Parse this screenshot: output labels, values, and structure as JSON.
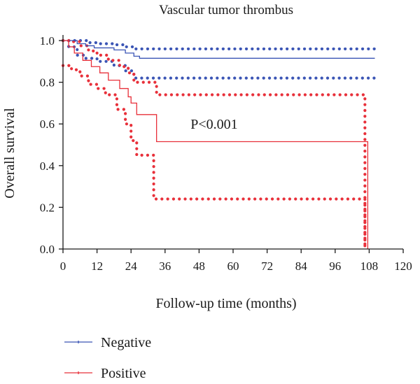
{
  "chart_data": {
    "type": "line",
    "subtype": "kaplan-meier survival with 95% confidence bands",
    "title": "Vascular tumor thrombus",
    "xlabel": "Follow-up time (months)",
    "ylabel": "Overall survival",
    "xlim": [
      0,
      120
    ],
    "ylim": [
      0,
      1.0
    ],
    "xticks": [
      0,
      12,
      24,
      36,
      48,
      60,
      72,
      84,
      96,
      108,
      120
    ],
    "yticks": [
      "0.0",
      "0.2",
      "0.4",
      "0.6",
      "0.8",
      "1.0"
    ],
    "grid": false,
    "annotation": "P<0.001",
    "legend_position": "bottom-left",
    "series": [
      {
        "name": "Negative",
        "color": "#3b55b5",
        "survival": [
          [
            0,
            1.0
          ],
          [
            4,
            1.0
          ],
          [
            5,
            0.985
          ],
          [
            8,
            0.975
          ],
          [
            11,
            0.965
          ],
          [
            18,
            0.955
          ],
          [
            22,
            0.94
          ],
          [
            25,
            0.925
          ],
          [
            27,
            0.915
          ],
          [
            110,
            0.915
          ]
        ],
        "upper_ci": [
          [
            0,
            1.0
          ],
          [
            6,
            1.0
          ],
          [
            9,
            0.99
          ],
          [
            12,
            0.985
          ],
          [
            18,
            0.98
          ],
          [
            22,
            0.97
          ],
          [
            25,
            0.96
          ],
          [
            110,
            0.96
          ]
        ],
        "lower_ci": [
          [
            0,
            1.0
          ],
          [
            2,
            0.97
          ],
          [
            5,
            0.93
          ],
          [
            8,
            0.915
          ],
          [
            12,
            0.9
          ],
          [
            18,
            0.88
          ],
          [
            22,
            0.855
          ],
          [
            25,
            0.82
          ],
          [
            110,
            0.82
          ]
        ]
      },
      {
        "name": "Positive",
        "color": "#e8303a",
        "survival": [
          [
            0,
            1.0
          ],
          [
            2,
            0.97
          ],
          [
            4,
            0.94
          ],
          [
            7,
            0.905
          ],
          [
            10,
            0.875
          ],
          [
            13,
            0.845
          ],
          [
            16,
            0.81
          ],
          [
            20,
            0.77
          ],
          [
            23,
            0.73
          ],
          [
            24,
            0.7
          ],
          [
            26,
            0.645
          ],
          [
            32,
            0.645
          ],
          [
            33,
            0.515
          ],
          [
            107,
            0.515
          ],
          [
            107.5,
            0.0
          ]
        ],
        "upper_ci": [
          [
            0,
            1.0
          ],
          [
            3,
            0.995
          ],
          [
            6,
            0.975
          ],
          [
            9,
            0.95
          ],
          [
            12,
            0.93
          ],
          [
            16,
            0.905
          ],
          [
            20,
            0.875
          ],
          [
            23,
            0.845
          ],
          [
            25,
            0.8
          ],
          [
            32,
            0.8
          ],
          [
            33,
            0.74
          ],
          [
            106,
            0.74
          ],
          [
            106.5,
            0.0
          ]
        ],
        "lower_ci": [
          [
            0,
            0.88
          ],
          [
            3,
            0.86
          ],
          [
            6,
            0.83
          ],
          [
            9,
            0.79
          ],
          [
            12,
            0.77
          ],
          [
            15,
            0.74
          ],
          [
            19,
            0.67
          ],
          [
            22,
            0.6
          ],
          [
            24,
            0.52
          ],
          [
            26,
            0.45
          ],
          [
            31,
            0.45
          ],
          [
            32,
            0.24
          ],
          [
            106,
            0.24
          ],
          [
            106.5,
            0.0
          ]
        ]
      }
    ]
  }
}
